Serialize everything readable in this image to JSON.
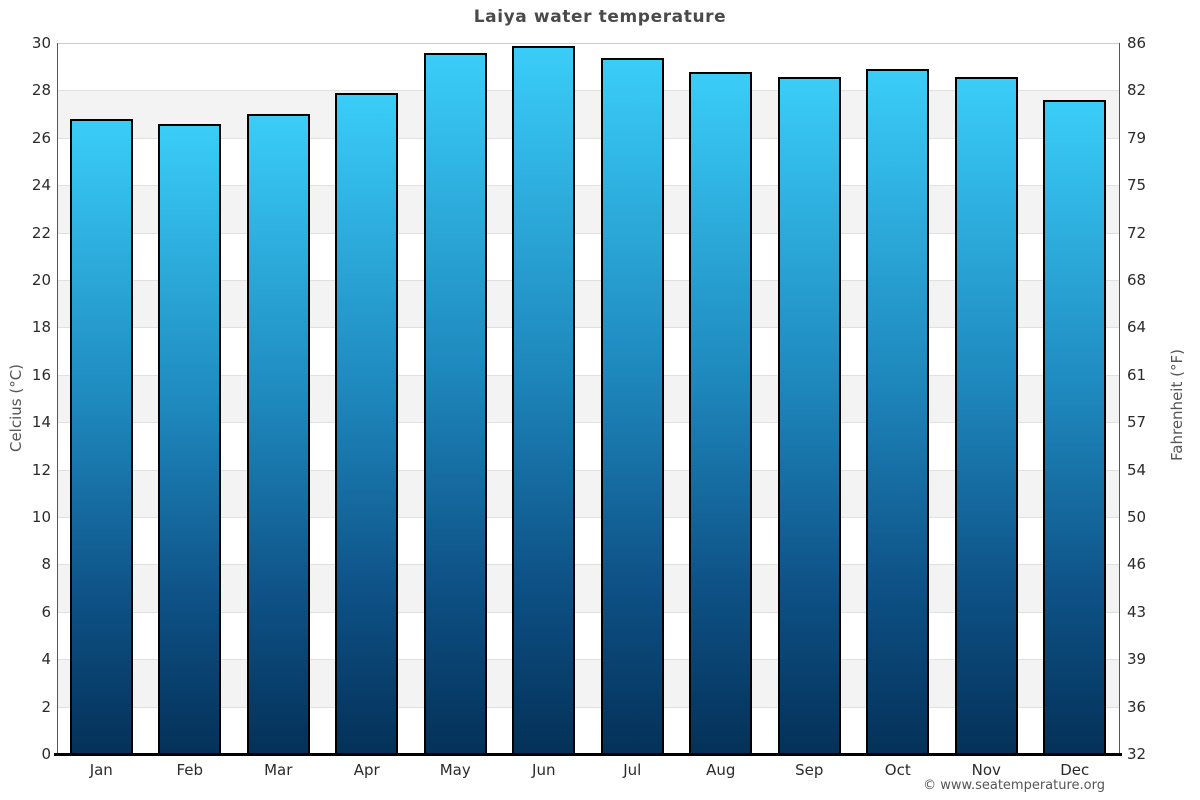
{
  "chart_data": {
    "type": "bar",
    "title": "Laiya water temperature",
    "categories": [
      "Jan",
      "Feb",
      "Mar",
      "Apr",
      "May",
      "Jun",
      "Jul",
      "Aug",
      "Sep",
      "Oct",
      "Nov",
      "Dec"
    ],
    "values": [
      26.7,
      26.5,
      26.9,
      27.8,
      29.5,
      29.8,
      29.3,
      28.7,
      28.5,
      28.8,
      28.5,
      27.5
    ],
    "unit": "°C",
    "ylabel_left": "Celcius (°C)",
    "ylabel_right": "Fahrenheit (°F)",
    "ylim": [
      0,
      30
    ],
    "ytick_step": 2,
    "yticks_left": [
      0,
      2,
      4,
      6,
      8,
      10,
      12,
      14,
      16,
      18,
      20,
      22,
      24,
      26,
      28,
      30
    ],
    "yticks_right": [
      32,
      36,
      39,
      43,
      46,
      50,
      54,
      57,
      61,
      64,
      68,
      72,
      75,
      79,
      82,
      86
    ],
    "grid": "alternating horizontal 2-degree bands, light gridlines",
    "legend_position": "none",
    "footer_credit": "© www.seatemperature.org",
    "colors": {
      "bar_gradient_top": "#3acdf8",
      "bar_gradient_upper_mid": "#1e88bd",
      "bar_gradient_lower_mid": "#0e5287",
      "bar_gradient_bottom": "#043158",
      "bar_border": "#000000",
      "band_light": "#ffffff",
      "band_dark": "#f3f3f3",
      "gridline": "#e0e0e0",
      "top_gridline": "#cccccc",
      "spine": "#555555",
      "baseline": "#000000",
      "title_color": "#4a4a4a",
      "tick_color": "#2b2b2b",
      "axis_label_color": "#555555",
      "footer_color": "#555555"
    }
  }
}
